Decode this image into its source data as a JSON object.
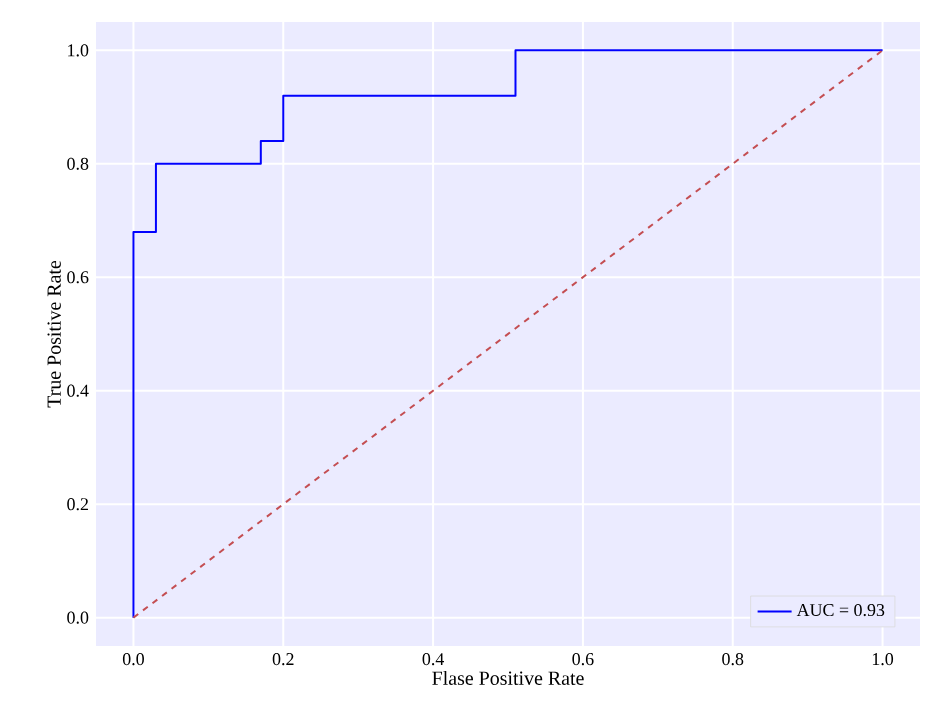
{
  "chart_data": {
    "type": "line",
    "xlabel": "Flase Positive Rate",
    "ylabel": "True Positive Rate",
    "series": [
      {
        "name": "AUC = 0.93",
        "color": "#0000ff",
        "x": [
          0,
          0,
          0.03,
          0.03,
          0.17,
          0.17,
          0.2,
          0.2,
          0.51,
          0.51,
          1.0
        ],
        "values": [
          0,
          0.68,
          0.68,
          0.8,
          0.8,
          0.84,
          0.84,
          0.92,
          0.92,
          1.0,
          1.0
        ]
      },
      {
        "color": "#c44e52",
        "line_style": "dashed",
        "x": [
          0,
          1
        ],
        "values": [
          0,
          1
        ]
      }
    ],
    "xlim": [
      -0.05,
      1.05
    ],
    "ylim": [
      -0.05,
      1.05
    ],
    "xticks": [
      {
        "value": 0,
        "label": "0.0"
      },
      {
        "value": 0.2,
        "label": "0.2"
      },
      {
        "value": 0.4,
        "label": "0.4"
      },
      {
        "value": 0.6,
        "label": "0.6"
      },
      {
        "value": 0.8,
        "label": "0.8"
      },
      {
        "value": 1,
        "label": "1.0"
      }
    ],
    "yticks": [
      {
        "value": 0,
        "label": "0.0"
      },
      {
        "value": 0.2,
        "label": "0.2"
      },
      {
        "value": 0.4,
        "label": "0.4"
      },
      {
        "value": 0.6,
        "label": "0.6"
      },
      {
        "value": 0.8,
        "label": "0.8"
      },
      {
        "value": 1,
        "label": "1.0"
      }
    ],
    "grid": true,
    "legend": "bottom right",
    "marker": "none",
    "line_style": "solid"
  }
}
